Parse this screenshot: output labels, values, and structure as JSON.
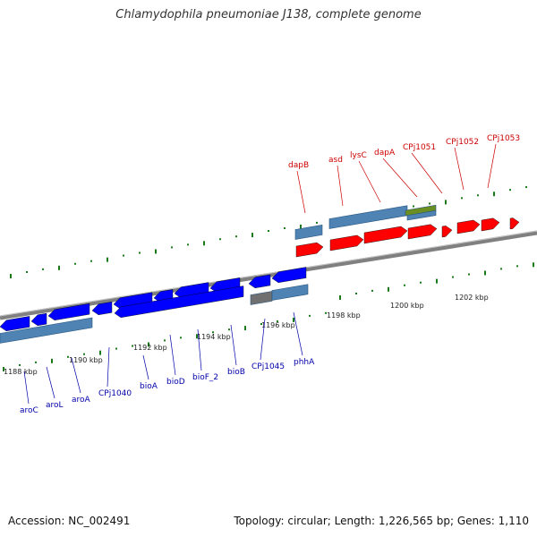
{
  "title": "Chlamydophila pneumoniae J138, complete genome",
  "footer": {
    "accession": "Accession: NC_002491",
    "topology": "Topology: circular; Length: 1,226,565 bp; Genes: 1,110"
  },
  "colors": {
    "forward_gene": "#ff0000",
    "reverse_gene": "#0000ff",
    "gene_label_forward": "#cc0000",
    "gene_label_reverse": "#0000aa",
    "cds_bar": "#4f83b3",
    "misc_feature": "#6b8e23",
    "genome_line": "#808080",
    "ticks": "#1a7a1a"
  },
  "scale_labels": [
    "1188 kbp",
    "1190 kbp",
    "1192 kbp",
    "1194 kbp",
    "1196 kbp",
    "1198 kbp",
    "1200 kbp",
    "1202 kbp"
  ],
  "genes_forward": [
    "dapB",
    "asd",
    "lysC",
    "dapA",
    "CPj1051",
    "CPj1052",
    "CPj1053"
  ],
  "genes_reverse": [
    "aroC",
    "aroL",
    "aroA",
    "CPj1040",
    "bioA",
    "bioD",
    "bioF_2",
    "bioB",
    "CPj1045",
    "phhA"
  ]
}
